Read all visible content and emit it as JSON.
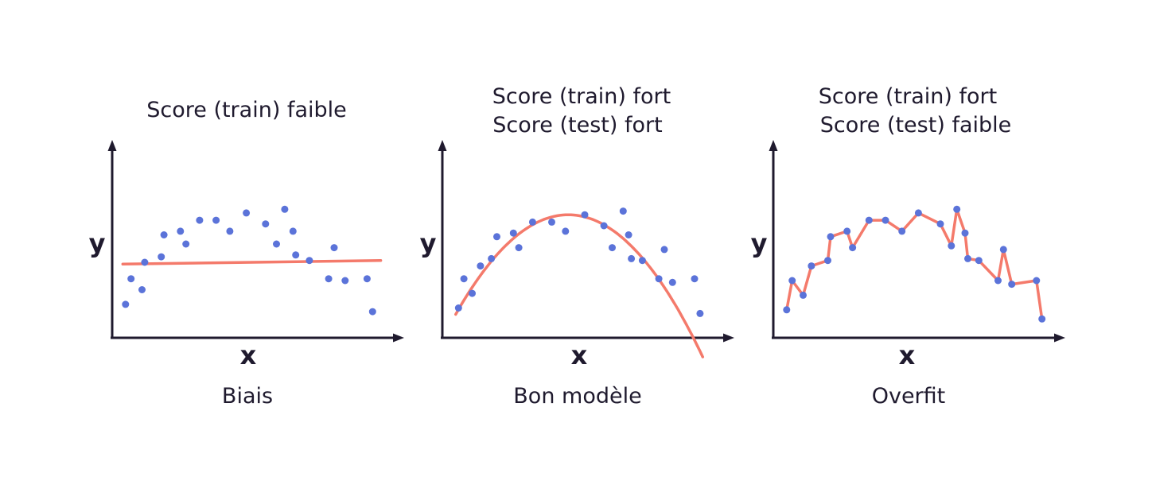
{
  "colors": {
    "points": "#5b73d9",
    "fit": "#f47a6b",
    "axis": "#1f1a2e",
    "text": "#1f1a2e"
  },
  "chart_data": [
    {
      "type": "scatter",
      "fit": "linear",
      "title": [
        "Score (train) faible"
      ],
      "caption": "Biais",
      "xlabel": "x",
      "ylabel": "y",
      "xlim": [
        0,
        100
      ],
      "ylim": [
        0,
        100
      ],
      "grid": false,
      "points": [
        {
          "x": 4,
          "y": 17
        },
        {
          "x": 6,
          "y": 31
        },
        {
          "x": 10,
          "y": 25
        },
        {
          "x": 11,
          "y": 40
        },
        {
          "x": 17,
          "y": 43
        },
        {
          "x": 18,
          "y": 55
        },
        {
          "x": 24,
          "y": 57
        },
        {
          "x": 26,
          "y": 50
        },
        {
          "x": 31,
          "y": 63
        },
        {
          "x": 37,
          "y": 63
        },
        {
          "x": 42,
          "y": 57
        },
        {
          "x": 48,
          "y": 67
        },
        {
          "x": 55,
          "y": 61
        },
        {
          "x": 59,
          "y": 50
        },
        {
          "x": 62,
          "y": 69
        },
        {
          "x": 65,
          "y": 57
        },
        {
          "x": 66,
          "y": 44
        },
        {
          "x": 71,
          "y": 41
        },
        {
          "x": 78,
          "y": 31
        },
        {
          "x": 80,
          "y": 48
        },
        {
          "x": 84,
          "y": 30
        },
        {
          "x": 92,
          "y": 31
        },
        {
          "x": 94,
          "y": 13
        }
      ],
      "fit_line": [
        {
          "x": 3,
          "y": 39
        },
        {
          "x": 97,
          "y": 41
        }
      ]
    },
    {
      "type": "scatter",
      "fit": "quadratic",
      "title": [
        "Score (train) fort",
        "Score (test) fort"
      ],
      "caption": "Bon modèle",
      "xlabel": "x",
      "ylabel": "y",
      "xlim": [
        0,
        100
      ],
      "ylim": [
        0,
        100
      ],
      "grid": false,
      "points": [
        {
          "x": 5,
          "y": 15
        },
        {
          "x": 7,
          "y": 31
        },
        {
          "x": 10,
          "y": 23
        },
        {
          "x": 13,
          "y": 38
        },
        {
          "x": 17,
          "y": 42
        },
        {
          "x": 19,
          "y": 54
        },
        {
          "x": 25,
          "y": 56
        },
        {
          "x": 27,
          "y": 48
        },
        {
          "x": 32,
          "y": 62
        },
        {
          "x": 39,
          "y": 62
        },
        {
          "x": 44,
          "y": 57
        },
        {
          "x": 51,
          "y": 66
        },
        {
          "x": 58,
          "y": 60
        },
        {
          "x": 61,
          "y": 48
        },
        {
          "x": 65,
          "y": 68
        },
        {
          "x": 67,
          "y": 55
        },
        {
          "x": 68,
          "y": 42
        },
        {
          "x": 72,
          "y": 41
        },
        {
          "x": 78,
          "y": 31
        },
        {
          "x": 80,
          "y": 47
        },
        {
          "x": 83,
          "y": 29
        },
        {
          "x": 91,
          "y": 31
        },
        {
          "x": 93,
          "y": 12
        }
      ],
      "fit_curve": {
        "peak_x": 45,
        "peak_y": 66,
        "curvature": 0.0324,
        "x_from": 4,
        "x_to": 94
      }
    },
    {
      "type": "line",
      "fit": "overfit",
      "title": [
        "Score (train) fort",
        "Score (test) faible"
      ],
      "caption": "Overfit",
      "xlabel": "x",
      "ylabel": "y",
      "xlim": [
        0,
        100
      ],
      "ylim": [
        0,
        100
      ],
      "grid": false,
      "points": [
        {
          "x": 4,
          "y": 14
        },
        {
          "x": 6,
          "y": 30
        },
        {
          "x": 10,
          "y": 22
        },
        {
          "x": 13,
          "y": 38
        },
        {
          "x": 19,
          "y": 41
        },
        {
          "x": 20,
          "y": 54
        },
        {
          "x": 26,
          "y": 57
        },
        {
          "x": 28,
          "y": 48
        },
        {
          "x": 34,
          "y": 63
        },
        {
          "x": 40,
          "y": 63
        },
        {
          "x": 46,
          "y": 57
        },
        {
          "x": 52,
          "y": 67
        },
        {
          "x": 60,
          "y": 61
        },
        {
          "x": 64,
          "y": 49
        },
        {
          "x": 66,
          "y": 69
        },
        {
          "x": 69,
          "y": 56
        },
        {
          "x": 70,
          "y": 42
        },
        {
          "x": 74,
          "y": 41
        },
        {
          "x": 81,
          "y": 30
        },
        {
          "x": 83,
          "y": 47
        },
        {
          "x": 86,
          "y": 28
        },
        {
          "x": 95,
          "y": 30
        },
        {
          "x": 97,
          "y": 9
        }
      ]
    }
  ]
}
